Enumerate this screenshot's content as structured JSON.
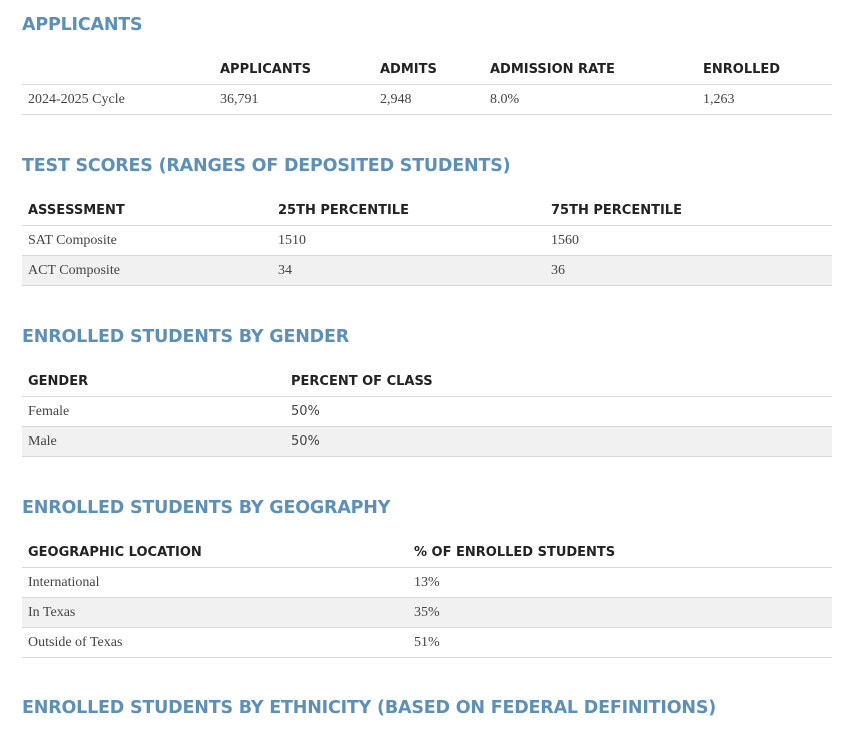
{
  "applicants": {
    "title": "APPLICANTS",
    "headers": [
      "",
      "APPLICANTS",
      "ADMITS",
      "ADMISSION RATE",
      "ENROLLED"
    ],
    "rows": [
      [
        "2024-2025 Cycle",
        "36,791",
        "2,948",
        "8.0%",
        "1,263"
      ]
    ]
  },
  "test_scores": {
    "title": "TEST SCORES (RANGES OF DEPOSITED STUDENTS)",
    "headers": [
      "ASSESSMENT",
      "25TH PERCENTILE",
      "75TH PERCENTILE"
    ],
    "rows": [
      [
        "SAT Composite",
        "1510",
        "1560"
      ],
      [
        "ACT Composite",
        "34",
        "36"
      ]
    ]
  },
  "gender": {
    "title": "ENROLLED STUDENTS BY GENDER",
    "headers": [
      "GENDER",
      "PERCENT OF CLASS"
    ],
    "rows": [
      [
        "Female",
        "50%"
      ],
      [
        "Male",
        "50%"
      ]
    ]
  },
  "geography": {
    "title": "ENROLLED STUDENTS BY GEOGRAPHY",
    "headers": [
      "GEOGRAPHIC LOCATION",
      "% OF ENROLLED STUDENTS"
    ],
    "rows": [
      [
        "International",
        "13%"
      ],
      [
        "In Texas",
        "35%"
      ],
      [
        "Outside of Texas",
        "51%"
      ]
    ]
  },
  "ethnicity": {
    "title": "ENROLLED STUDENTS BY ETHNICITY (BASED ON FEDERAL DEFINITIONS)"
  },
  "colors": {
    "heading": "#5d8fb7",
    "row_alt": "#f1f1f1",
    "border": "#d8d8d8"
  }
}
